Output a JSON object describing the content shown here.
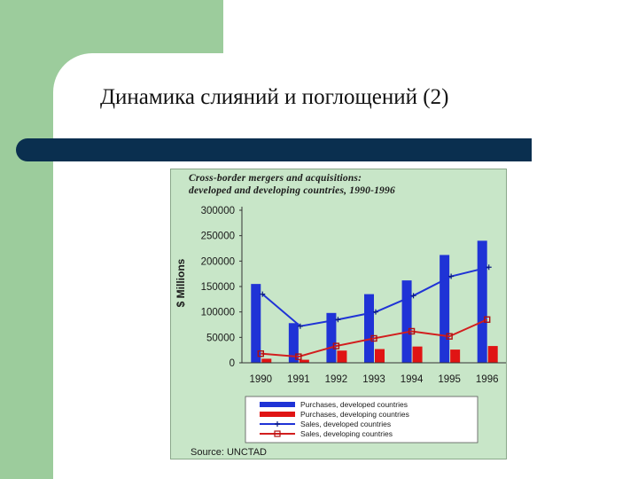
{
  "slide": {
    "title": "Динамика слияний и поглощений (2)"
  },
  "colors": {
    "background_green": "#9ccc9c",
    "title_bar": "#0a2f4f",
    "chart_background": "#c8e6c8",
    "purchases_developed": "#1f33d6",
    "purchases_developing": "#e01414",
    "sales_developed": "#1f33d6",
    "sales_developing": "#d21e1e"
  },
  "chart_data": {
    "type": "bar",
    "title_line1": "Cross-border mergers and acquisitions:",
    "title_line2": "developed and developing countries, 1990-1996",
    "ylabel": "$ Millions",
    "ylim": [
      0,
      300000
    ],
    "yticks": [
      "300000",
      "250000",
      "200000",
      "150000",
      "100000",
      "50000",
      "0"
    ],
    "categories": [
      "1990",
      "1991",
      "1992",
      "1993",
      "1994",
      "1995",
      "1996"
    ],
    "series": [
      {
        "name": "Purchases, developed countries",
        "kind": "bar",
        "values": [
          155000,
          78000,
          98000,
          135000,
          162000,
          212000,
          240000
        ]
      },
      {
        "name": "Purchases, developing countries",
        "kind": "bar",
        "values": [
          8000,
          6000,
          24000,
          27000,
          32000,
          26000,
          33000
        ]
      },
      {
        "name": "Sales, developed countries",
        "kind": "line",
        "values": [
          135000,
          72000,
          85000,
          100000,
          132000,
          170000,
          188000
        ]
      },
      {
        "name": "Sales, developing countries",
        "kind": "line",
        "values": [
          18000,
          12000,
          33000,
          48000,
          62000,
          52000,
          85000
        ]
      }
    ],
    "legend_position": "bottom",
    "source": "Source: UNCTAD"
  }
}
